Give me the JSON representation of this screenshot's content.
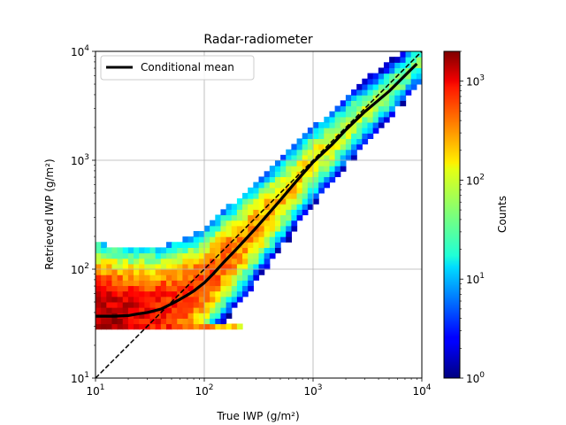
{
  "chart_data": {
    "type": "heatmap",
    "title": "Radar-radiometer",
    "xlabel": "True IWP (g/m²)",
    "ylabel": "Retrieved IWP (g/m²)",
    "xscale": "log",
    "yscale": "log",
    "xlim": [
      10,
      10000
    ],
    "ylim": [
      10,
      10000
    ],
    "x_ticks": [
      {
        "value": 10,
        "base": "10",
        "exp": "1"
      },
      {
        "value": 100,
        "base": "10",
        "exp": "2"
      },
      {
        "value": 1000,
        "base": "10",
        "exp": "3"
      },
      {
        "value": 10000,
        "base": "10",
        "exp": "4"
      }
    ],
    "y_ticks": [
      {
        "value": 10,
        "base": "10",
        "exp": "1"
      },
      {
        "value": 100,
        "base": "10",
        "exp": "2"
      },
      {
        "value": 1000,
        "base": "10",
        "exp": "3"
      },
      {
        "value": 10000,
        "base": "10",
        "exp": "4"
      }
    ],
    "grid": true,
    "colormap": "jet",
    "colorbar": {
      "label": "Counts",
      "scale": "log",
      "range": [
        1,
        2000
      ],
      "ticks": [
        {
          "value": 1,
          "base": "10",
          "exp": "0"
        },
        {
          "value": 10,
          "base": "10",
          "exp": "1"
        },
        {
          "value": 100,
          "base": "10",
          "exp": "2"
        },
        {
          "value": 1000,
          "base": "10",
          "exp": "3"
        }
      ]
    },
    "legend": {
      "placement": "top-left",
      "entries": [
        "Conditional mean"
      ]
    },
    "series": [
      {
        "name": "Conditional mean",
        "color": "#000000",
        "style": "solid",
        "x": [
          10,
          15,
          20,
          25,
          30,
          40,
          50,
          60,
          70,
          80,
          100,
          120,
          150,
          200,
          300,
          500,
          700,
          1000,
          1500,
          2000,
          3000,
          5000,
          7000,
          9000
        ],
        "y": [
          37,
          37,
          37.5,
          39,
          40,
          43,
          48,
          53,
          58,
          63,
          75,
          90,
          115,
          155,
          240,
          430,
          640,
          960,
          1400,
          1900,
          2800,
          4300,
          6000,
          7700
        ]
      },
      {
        "name": "",
        "color": "#000000",
        "style": "dashed",
        "x": [
          10,
          10000
        ],
        "y": [
          10,
          10000
        ]
      }
    ],
    "distribution_model": {
      "retrieval_floor": 30,
      "dense_band_y": [
        24,
        32
      ],
      "floor_x_extent": 600
    }
  }
}
